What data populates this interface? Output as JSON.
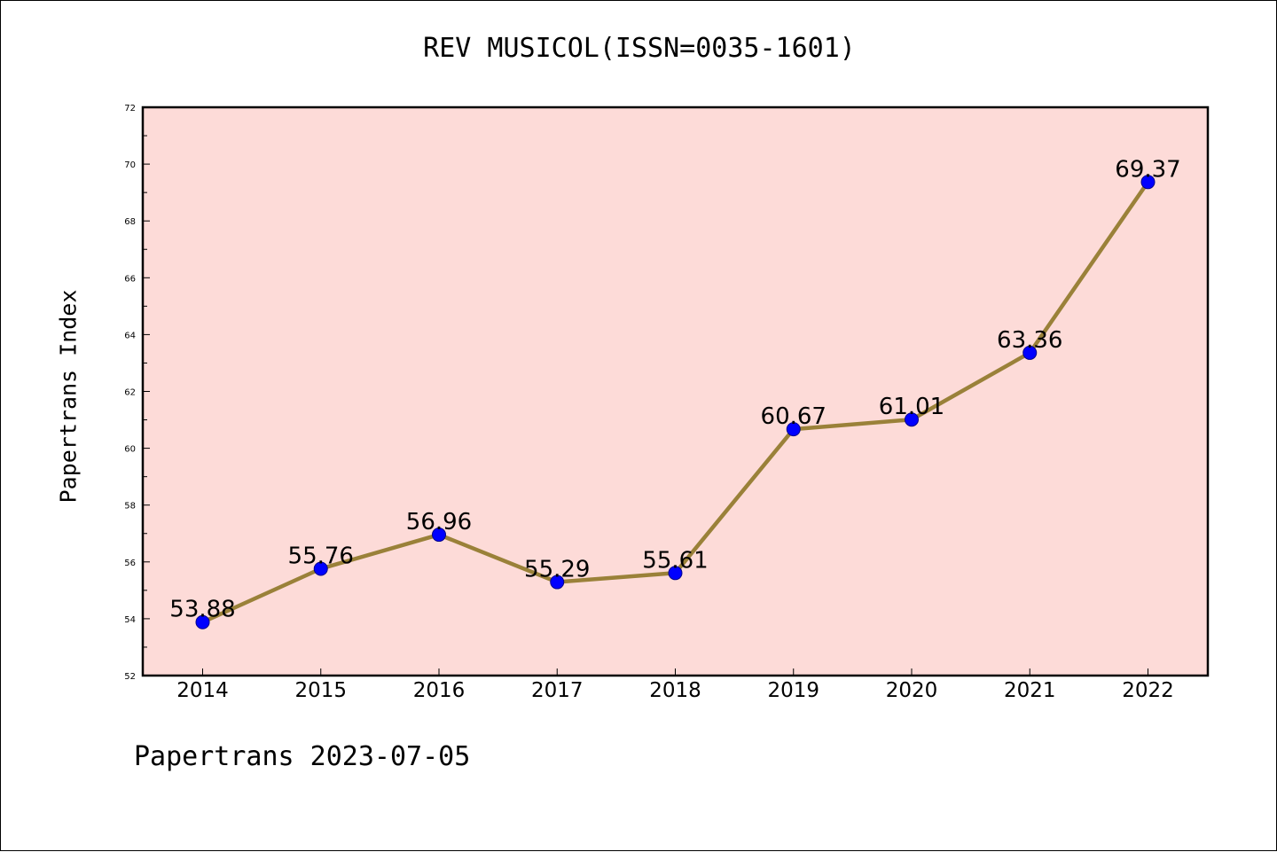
{
  "chart_data": {
    "type": "line",
    "title": "REV MUSICOL(ISSN=0035-1601)",
    "xlabel": "",
    "ylabel": "Papertrans Index",
    "categories": [
      "2014",
      "2015",
      "2016",
      "2017",
      "2018",
      "2019",
      "2020",
      "2021",
      "2022"
    ],
    "series": [
      {
        "values": [
          53.88,
          55.76,
          56.96,
          55.29,
          55.61,
          60.67,
          61.01,
          63.36,
          69.37
        ],
        "labels": [
          "53.88",
          "55.76",
          "56.96",
          "55.29",
          "55.61",
          "60.67",
          "61.01",
          "63.36",
          "69.37"
        ]
      }
    ],
    "ylim": [
      52,
      72
    ],
    "yticks": [
      "52",
      "54",
      "56",
      "58",
      "60",
      "62",
      "64",
      "66",
      "68",
      "70",
      "72"
    ],
    "grid": false,
    "legend": "none"
  },
  "footer": {
    "text": "Papertrans 2023-07-05"
  },
  "colors": {
    "plot_background": "#fddbd8",
    "line": "#9a8139",
    "marker": "#0000ff",
    "axis": "#000000"
  }
}
